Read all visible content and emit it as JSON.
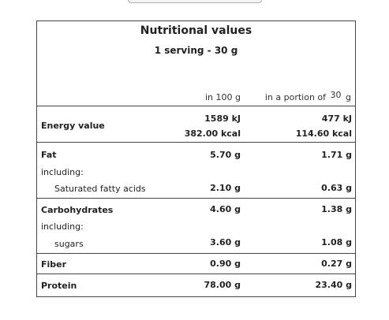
{
  "title": "Nutritional values",
  "serving": "1 serving - 30  g",
  "columns": {
    "per100_label": "in 100 g",
    "portion_prefix": "in a portion of",
    "portion_value": "30",
    "portion_unit": "g"
  },
  "rows": {
    "energy": {
      "label": "Energy value",
      "per100_kj": "1589 kJ",
      "per100_kcal": "382.00 kcal",
      "portion_kj": "477 kJ",
      "portion_kcal": "114.60 kcal"
    },
    "fat": {
      "label": "Fat",
      "per100": "5.70 g",
      "portion": "1.71 g"
    },
    "fat_including": {
      "label": "including:"
    },
    "saturated": {
      "label": "Saturated fatty acids",
      "per100": "2.10 g",
      "portion": "0.63 g"
    },
    "carbohydrates": {
      "label": "Carbohydrates",
      "per100": "4.60 g",
      "portion": "1.38 g"
    },
    "carb_including": {
      "label": "including:"
    },
    "sugars": {
      "label": "sugars",
      "per100": "3.60 g",
      "portion": "1.08 g"
    },
    "fiber": {
      "label": "Fiber",
      "per100": "0.90 g",
      "portion": "0.27 g"
    },
    "protein": {
      "label": "Protein",
      "per100": "78.00 g",
      "portion": "23.40 g"
    }
  }
}
